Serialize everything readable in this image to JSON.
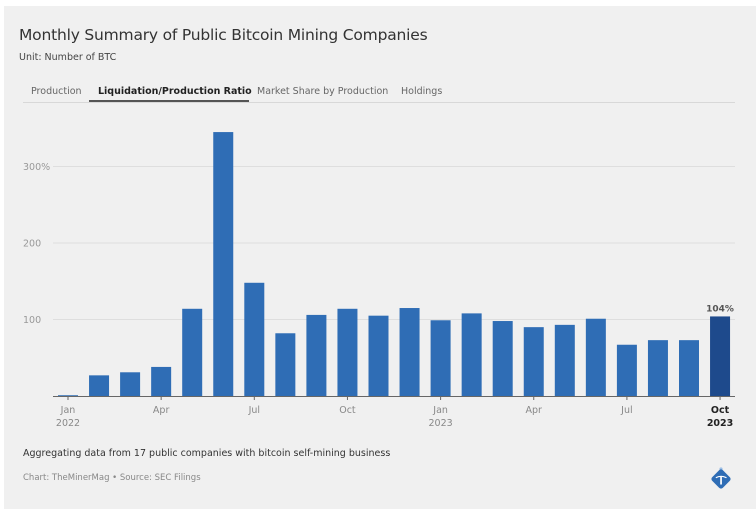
{
  "header": {
    "title": "Monthly Summary of Public Bitcoin Mining Companies",
    "subtitle": "Unit: Number of BTC"
  },
  "tabs": [
    {
      "label": "Production",
      "active": false
    },
    {
      "label": "Liquidation/Production Ratio",
      "active": true
    },
    {
      "label": "Market Share by Production",
      "active": false
    },
    {
      "label": "Holdings",
      "active": false
    }
  ],
  "footer": {
    "note": "Aggregating data from 17 public companies with bitcoin self-mining business",
    "credit": "Chart: TheMinerMag • Source: SEC Filings",
    "logo_icon": "pickaxe-diamond-logo"
  },
  "colors": {
    "bar": "#2f6db5",
    "bar_highlight": "#1e4a8c",
    "grid": "#dedede",
    "axis": "#666666"
  },
  "chart_data": {
    "type": "bar",
    "title": "Monthly Summary of Public Bitcoin Mining Companies",
    "subtitle": "Unit: Number of BTC",
    "xlabel": "",
    "ylabel": "",
    "ylim": [
      0,
      350
    ],
    "grid": true,
    "y_ticks": [
      {
        "value": 100,
        "label": "100"
      },
      {
        "value": 200,
        "label": "200"
      },
      {
        "value": 300,
        "label": "300%"
      }
    ],
    "x_ticks": [
      {
        "index": 0,
        "label": "Jan",
        "sublabel": "2022",
        "bold": false
      },
      {
        "index": 3,
        "label": "Apr",
        "sublabel": "",
        "bold": false
      },
      {
        "index": 6,
        "label": "Jul",
        "sublabel": "",
        "bold": false
      },
      {
        "index": 9,
        "label": "Oct",
        "sublabel": "",
        "bold": false
      },
      {
        "index": 12,
        "label": "Jan",
        "sublabel": "2023",
        "bold": false
      },
      {
        "index": 15,
        "label": "Apr",
        "sublabel": "",
        "bold": false
      },
      {
        "index": 18,
        "label": "Jul",
        "sublabel": "",
        "bold": false
      },
      {
        "index": 21,
        "label": "Oct",
        "sublabel": "2023",
        "bold": true
      }
    ],
    "categories": [
      "Jan 2022",
      "Feb 2022",
      "Mar 2022",
      "Apr 2022",
      "May 2022",
      "Jun 2022",
      "Jul 2022",
      "Aug 2022",
      "Sep 2022",
      "Oct 2022",
      "Nov 2022",
      "Dec 2022",
      "Jan 2023",
      "Feb 2023",
      "Mar 2023",
      "Apr 2023",
      "May 2023",
      "Jun 2023",
      "Jul 2023",
      "Aug 2023",
      "Sep 2023",
      "Oct 2023"
    ],
    "values": [
      1,
      27,
      31,
      38,
      114,
      345,
      148,
      82,
      106,
      114,
      105,
      115,
      99,
      108,
      98,
      90,
      93,
      101,
      67,
      73,
      73,
      104
    ],
    "highlight_index": 21,
    "annotations": [
      {
        "index": 21,
        "label": "104%"
      }
    ]
  }
}
